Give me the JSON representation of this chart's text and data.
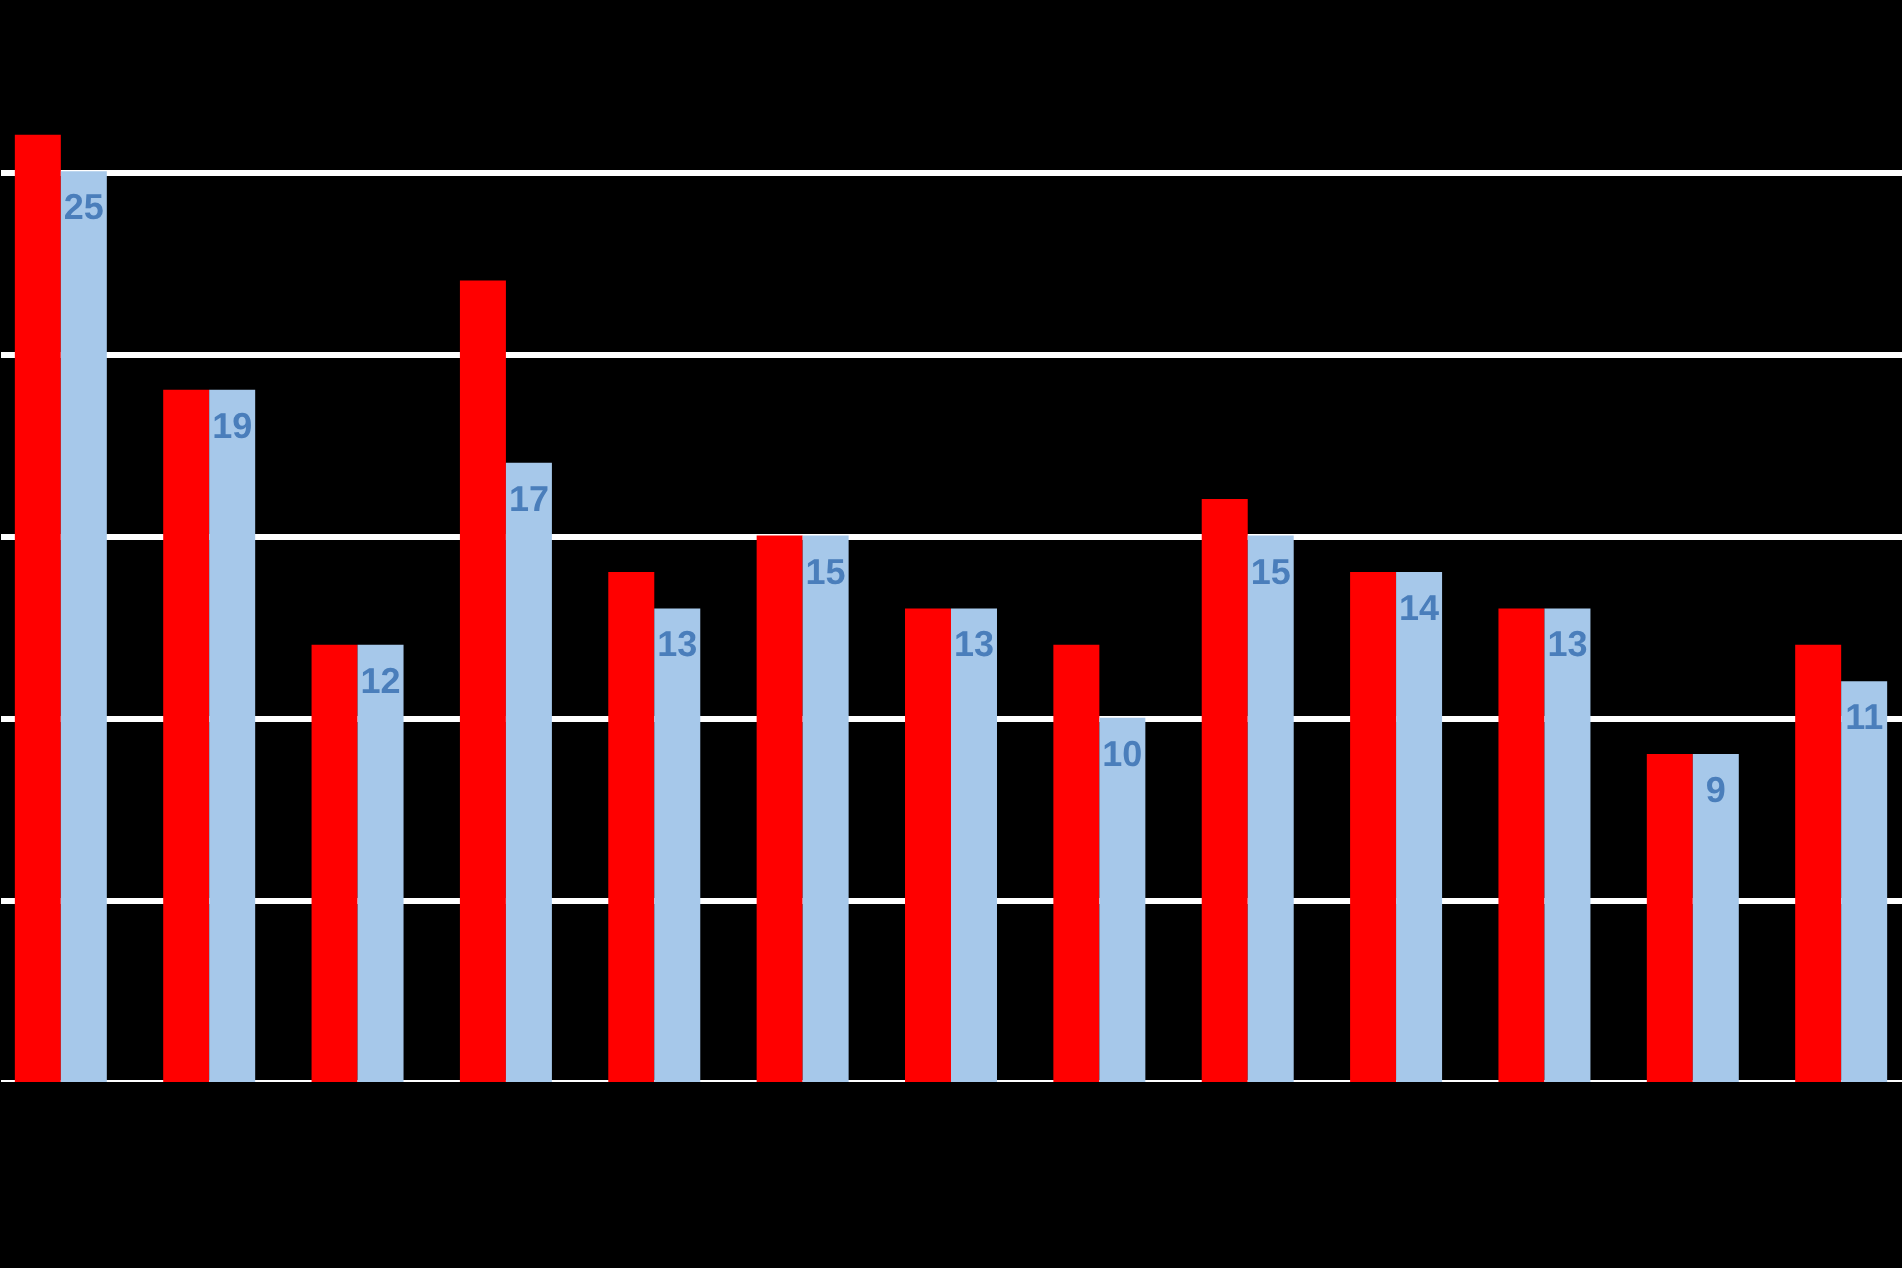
{
  "chart_data": {
    "type": "bar",
    "categories": [
      null,
      null,
      null,
      null,
      null,
      null,
      null,
      null,
      null,
      null,
      null,
      null,
      null
    ],
    "series": [
      {
        "color": "#ff0000",
        "values": [
          26,
          19,
          12,
          22,
          14,
          15,
          13,
          12,
          16,
          14,
          13,
          9,
          12
        ]
      },
      {
        "color": "#a6c8ea",
        "values": [
          25,
          19,
          12,
          17,
          13,
          15,
          13,
          10,
          15,
          14,
          13,
          9,
          11
        ],
        "value_labels": [
          "25",
          "19",
          "12",
          "17",
          "13",
          "15",
          "13",
          "10",
          "15",
          "14",
          "13",
          "9",
          "11"
        ]
      }
    ],
    "ylim": [
      0,
      29.7
    ],
    "yticks": [
      {
        "value": 0,
        "label": null
      },
      {
        "value": 5,
        "label": null
      },
      {
        "value": 10,
        "label": null
      },
      {
        "value": 15,
        "label": null
      },
      {
        "value": 20,
        "label": null
      },
      {
        "value": 25,
        "label": null
      }
    ],
    "grid": "y"
  }
}
